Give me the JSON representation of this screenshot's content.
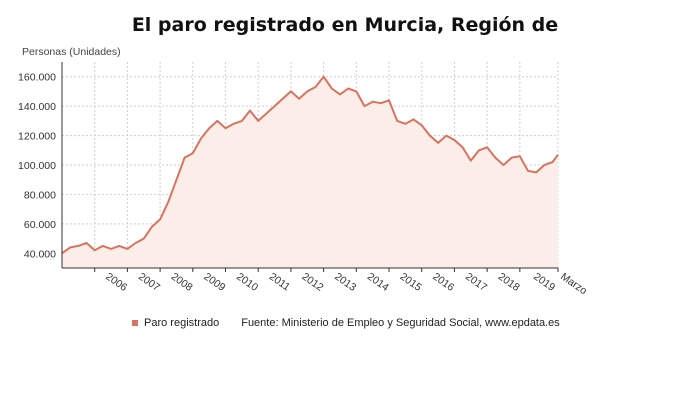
{
  "chart_data": {
    "type": "area",
    "title": "El paro registrado en Murcia, Región de",
    "ylabel": "Personas (Unidades)",
    "xlabel": "",
    "ylim": [
      30000,
      170000
    ],
    "yticks": [
      40000,
      60000,
      80000,
      100000,
      120000,
      140000,
      160000
    ],
    "ytick_labels": [
      "40.000",
      "60.000",
      "80.000",
      "100.000",
      "120.000",
      "140.000",
      "160.000"
    ],
    "x_tick_labels": [
      "2006",
      "2007",
      "2008",
      "2009",
      "2010",
      "2011",
      "2012",
      "2013",
      "2014",
      "2015",
      "2016",
      "2017",
      "2018",
      "2019",
      "Marzo"
    ],
    "grid": true,
    "legend_position": "bottom-left",
    "series": [
      {
        "name": "Paro registrado",
        "color": "#d9735f",
        "x": [
          "2005-01",
          "2005-04",
          "2005-07",
          "2005-10",
          "2006-01",
          "2006-04",
          "2006-07",
          "2006-10",
          "2007-01",
          "2007-04",
          "2007-07",
          "2007-10",
          "2008-01",
          "2008-04",
          "2008-07",
          "2008-10",
          "2009-01",
          "2009-04",
          "2009-07",
          "2009-10",
          "2010-01",
          "2010-04",
          "2010-07",
          "2010-10",
          "2011-01",
          "2011-04",
          "2011-07",
          "2011-10",
          "2012-01",
          "2012-04",
          "2012-07",
          "2012-10",
          "2013-01",
          "2013-04",
          "2013-07",
          "2013-10",
          "2014-01",
          "2014-04",
          "2014-07",
          "2014-10",
          "2015-01",
          "2015-04",
          "2015-07",
          "2015-10",
          "2016-01",
          "2016-04",
          "2016-07",
          "2016-10",
          "2017-01",
          "2017-04",
          "2017-07",
          "2017-10",
          "2018-01",
          "2018-04",
          "2018-07",
          "2018-10",
          "2019-01",
          "2019-04",
          "2019-07",
          "2019-10",
          "2020-01",
          "2020-03"
        ],
        "values": [
          40000,
          44000,
          45000,
          47000,
          42000,
          45000,
          43000,
          45000,
          43000,
          47000,
          50000,
          58000,
          63000,
          75000,
          90000,
          105000,
          108000,
          118000,
          125000,
          130000,
          125000,
          128000,
          130000,
          137000,
          130000,
          135000,
          140000,
          145000,
          150000,
          145000,
          150000,
          153000,
          160000,
          152000,
          148000,
          152000,
          150000,
          140000,
          143000,
          142000,
          144000,
          130000,
          128000,
          131000,
          127000,
          120000,
          115000,
          120000,
          117000,
          112000,
          103000,
          110000,
          112000,
          105000,
          100000,
          105000,
          106000,
          96000,
          95000,
          100000,
          102000,
          107000
        ]
      }
    ]
  },
  "footer": {
    "source": "Fuente: Ministerio de Empleo y Seguridad Social, www.epdata.es"
  }
}
